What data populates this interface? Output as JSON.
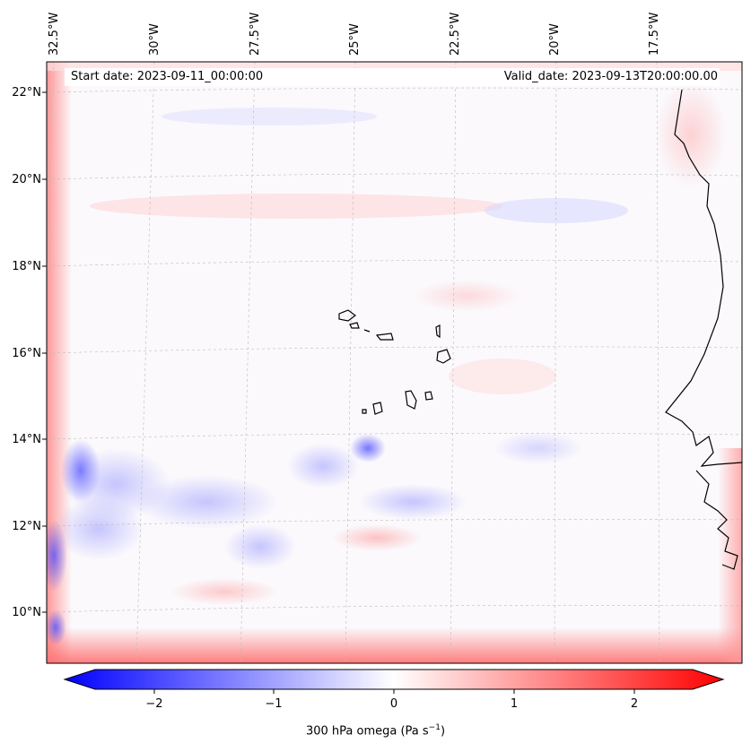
{
  "header": {
    "start_date": "Start date: 2023-09-11_00:00:00",
    "valid_date": "Valid_date: 2023-09-13T20:00:00.00"
  },
  "lon_labels": [
    "32.5°W",
    "30°W",
    "27.5°W",
    "25°W",
    "22.5°W",
    "20°W",
    "17.5°W"
  ],
  "lat_labels": [
    "22°N",
    "20°N",
    "18°N",
    "16°N",
    "14°N",
    "12°N",
    "10°N"
  ],
  "colorbar": {
    "ticks": [
      "−2",
      "−1",
      "0",
      "1",
      "2"
    ],
    "label_main": "300 hPa omega (Pa s",
    "label_sup": "−1",
    "label_end": ")",
    "min_color": "#0000ff",
    "mid_color": "#ffffff",
    "max_color": "#ff0000"
  },
  "map": {
    "colormap": "bwr",
    "projection": "lambert",
    "gridlines": "dashed",
    "coastline_color": "#000000",
    "features": [
      "Cabo Verde islands",
      "West African coast (Senegal, Gambia, Guinea-Bissau)"
    ]
  }
}
